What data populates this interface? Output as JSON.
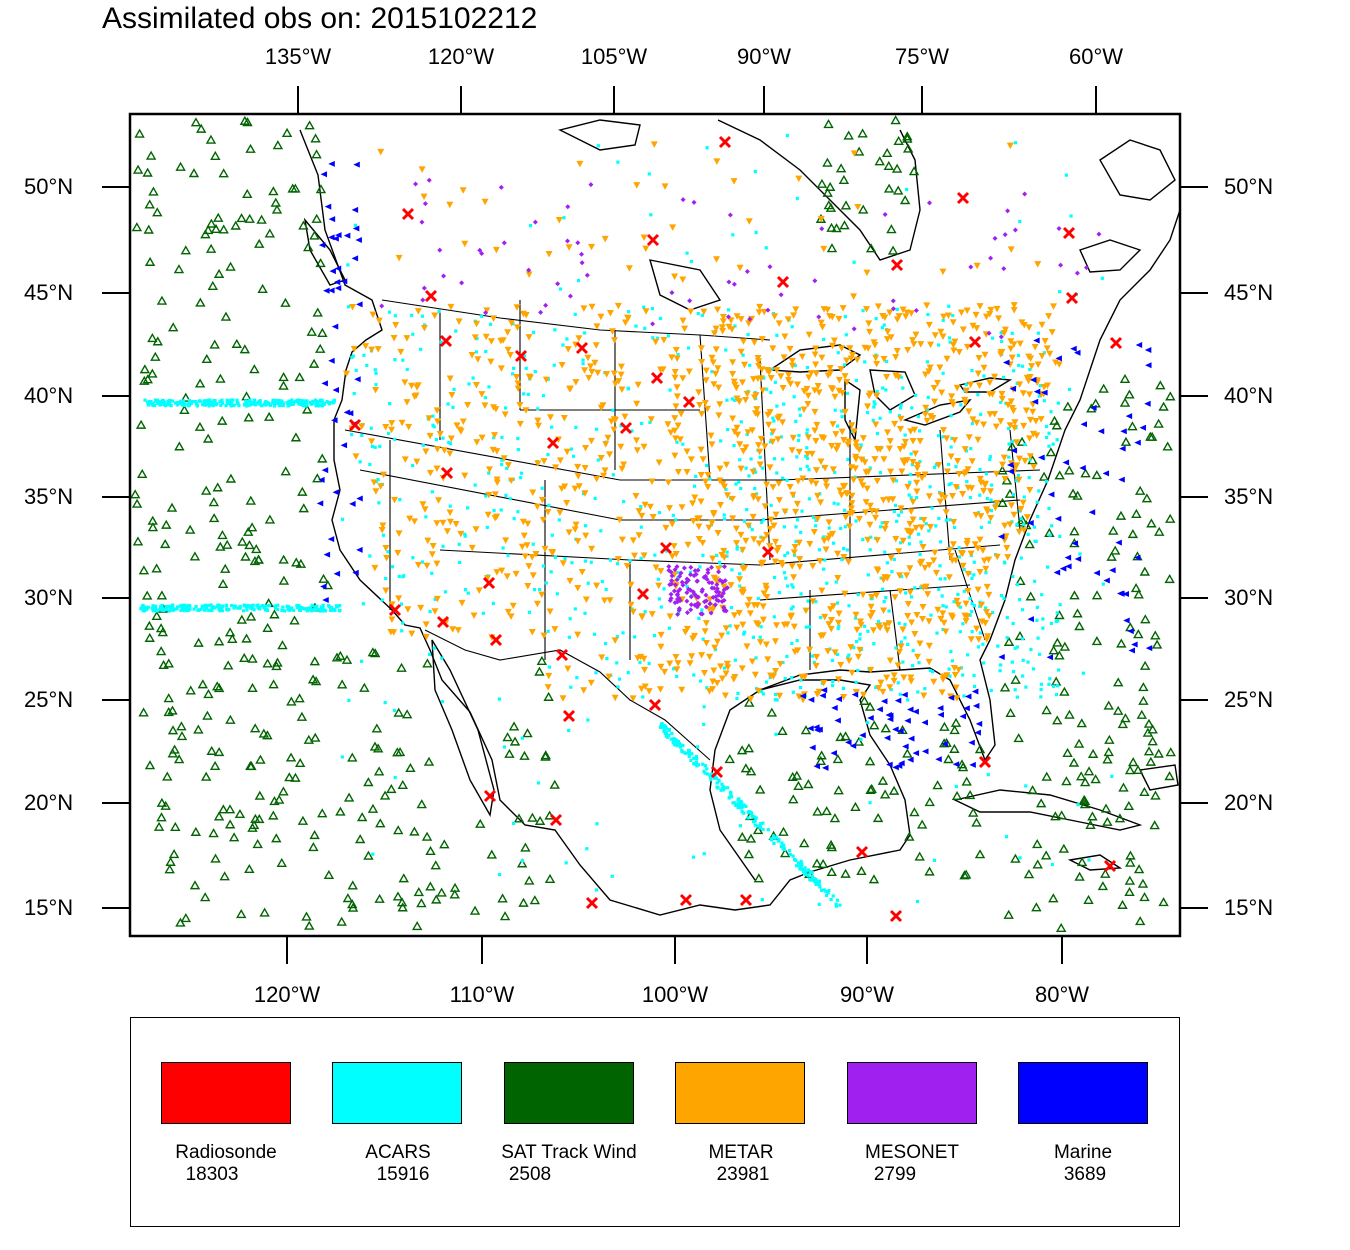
{
  "title": "Assimilated obs on: 2015102212",
  "top_ticks": [
    "135°W",
    "120°W",
    "105°W",
    "90°W",
    "75°W",
    "60°W"
  ],
  "bottom_ticks": [
    "120°W",
    "110°W",
    "100°W",
    "90°W",
    "80°W"
  ],
  "left_ticks": [
    "50°N",
    "45°N",
    "40°N",
    "35°N",
    "30°N",
    "25°N",
    "20°N",
    "15°N"
  ],
  "right_ticks": [
    "50°N",
    "45°N",
    "40°N",
    "35°N",
    "30°N",
    "25°N",
    "20°N",
    "15°N"
  ],
  "legend": [
    {
      "name": "Radiosonde",
      "count": "18303",
      "color": "#ff0000",
      "marker": "x"
    },
    {
      "name": "ACARS",
      "count": "15916",
      "color": "#00ffff",
      "marker": "square"
    },
    {
      "name": "SAT Track Wind",
      "count": "2508",
      "color": "#006400",
      "marker": "triangle-up"
    },
    {
      "name": "METAR",
      "count": "23981",
      "color": "#ffa500",
      "marker": "triangle-down"
    },
    {
      "name": "MESONET",
      "count": "2799",
      "color": "#a020f0",
      "marker": "diamond"
    },
    {
      "name": "Marine",
      "count": "3689",
      "color": "#0000ff",
      "marker": "triangle-left"
    }
  ]
}
